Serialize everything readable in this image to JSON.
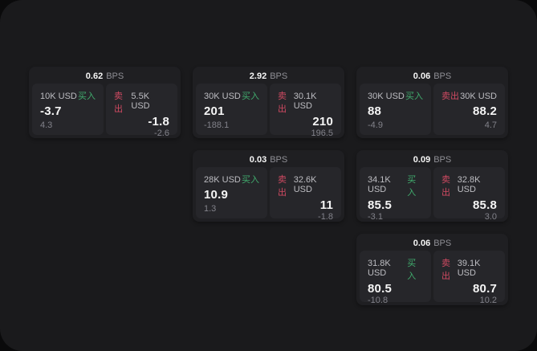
{
  "theme": {
    "outer_bg": "#0a0a0b",
    "panel_bg": "#1a1a1c",
    "card_bg": "#1f1f22",
    "cell_bg": "#26262a",
    "text_primary": "#f5f5f5",
    "text_label": "#bdbdc2",
    "text_dim": "#82828a",
    "buy_color": "#40ab6d",
    "sell_color": "#d04a62"
  },
  "labels": {
    "buy": "买入",
    "sell": "卖出",
    "bps_unit": "BPS"
  },
  "cards": [
    {
      "col": 1,
      "row": 1,
      "bps": "0.62",
      "buy_size": "10K USD",
      "buy_value": "-3.7",
      "buy_delta": "4.3",
      "sell_size": "5.5K USD",
      "sell_value": "-1.8",
      "sell_delta": "-2.6"
    },
    {
      "col": 2,
      "row": 1,
      "bps": "2.92",
      "buy_size": "30K USD",
      "buy_value": "201",
      "buy_delta": "-188.1",
      "sell_size": "30.1K USD",
      "sell_value": "210",
      "sell_delta": "196.5"
    },
    {
      "col": 3,
      "row": 1,
      "bps": "0.06",
      "buy_size": "30K USD",
      "buy_value": "88",
      "buy_delta": "-4.9",
      "sell_size": "30K USD",
      "sell_value": "88.2",
      "sell_delta": "4.7"
    },
    {
      "col": 2,
      "row": 2,
      "bps": "0.03",
      "buy_size": "28K USD",
      "buy_value": "10.9",
      "buy_delta": "1.3",
      "sell_size": "32.6K USD",
      "sell_value": "11",
      "sell_delta": "-1.8"
    },
    {
      "col": 3,
      "row": 2,
      "bps": "0.09",
      "buy_size": "34.1K USD",
      "buy_value": "85.5",
      "buy_delta": "-3.1",
      "sell_size": "32.8K USD",
      "sell_value": "85.8",
      "sell_delta": "3.0"
    },
    {
      "col": 3,
      "row": 3,
      "bps": "0.06",
      "buy_size": "31.8K USD",
      "buy_value": "80.5",
      "buy_delta": "-10.8",
      "sell_size": "39.1K USD",
      "sell_value": "80.7",
      "sell_delta": "10.2"
    }
  ]
}
